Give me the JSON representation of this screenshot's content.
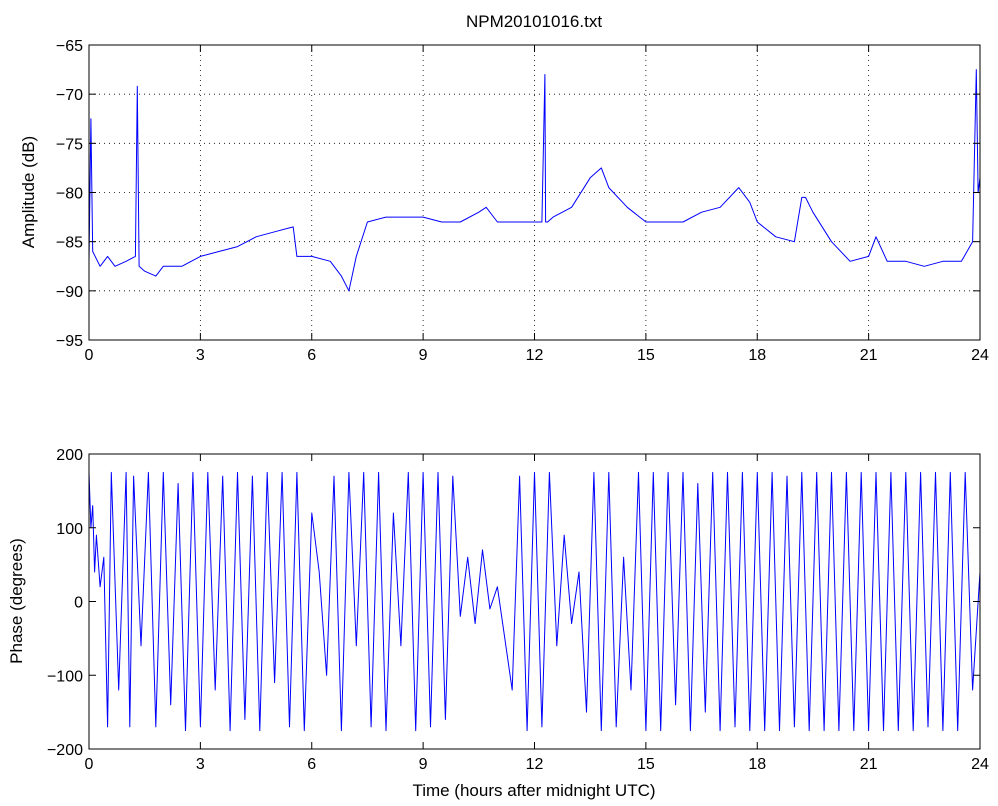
{
  "chart_data": [
    {
      "type": "line",
      "title": "NPM20101016.txt",
      "xlabel": "",
      "ylabel": "Amplitude (dB)",
      "xlim": [
        0,
        24
      ],
      "ylim": [
        -95,
        -65
      ],
      "xticks": [
        0,
        3,
        6,
        9,
        12,
        15,
        18,
        21,
        24
      ],
      "yticks": [
        -95,
        -90,
        -85,
        -80,
        -75,
        -70,
        -65
      ],
      "grid": true,
      "color": "#0000ff",
      "series": [
        {
          "x": [
            0,
            0.05,
            0.1,
            0.3,
            0.5,
            0.7,
            1.0,
            1.25,
            1.3,
            1.35,
            1.5,
            1.8,
            2.0,
            2.5,
            3.0,
            3.5,
            4.0,
            4.5,
            5.0,
            5.5,
            5.6,
            6.0,
            6.5,
            6.8,
            7.0,
            7.2,
            7.5,
            8.0,
            8.5,
            9.0,
            9.5,
            10.0,
            10.5,
            10.7,
            11.0,
            11.5,
            12.0,
            12.2,
            12.28,
            12.3,
            12.35,
            12.5,
            13.0,
            13.5,
            13.8,
            14.0,
            14.5,
            15.0,
            15.5,
            16.0,
            16.5,
            17.0,
            17.5,
            17.8,
            18.0,
            18.5,
            19.0,
            19.2,
            19.3,
            19.5,
            20.0,
            20.5,
            21.0,
            21.2,
            21.5,
            22.0,
            22.5,
            23.0,
            23.5,
            23.8,
            23.9,
            23.95,
            24.0
          ],
          "y": [
            -87,
            -72.5,
            -86,
            -87.5,
            -86.5,
            -87.5,
            -87,
            -86.5,
            -69.2,
            -87.5,
            -88,
            -88.5,
            -87.5,
            -87.5,
            -86.5,
            -86,
            -85.5,
            -84.5,
            -84,
            -83.5,
            -86.5,
            -86.5,
            -87,
            -88.5,
            -90,
            -86.5,
            -83,
            -82.5,
            -82.5,
            -82.5,
            -83,
            -83,
            -82,
            -81.5,
            -83,
            -83,
            -83,
            -83,
            -68,
            -83,
            -83,
            -82.5,
            -81.5,
            -78.5,
            -77.5,
            -79.5,
            -81.5,
            -83,
            -83,
            -83,
            -82,
            -81.5,
            -79.5,
            -81,
            -83,
            -84.5,
            -85,
            -80.5,
            -80.5,
            -82,
            -85,
            -87,
            -86.5,
            -84.5,
            -87,
            -87,
            -87.5,
            -87,
            -87,
            -85,
            -67.5,
            -80,
            -78.5
          ]
        }
      ]
    },
    {
      "type": "line",
      "title": "",
      "xlabel": "Time (hours after midnight UTC)",
      "ylabel": "Phase (degrees)",
      "xlim": [
        0,
        24
      ],
      "ylim": [
        -200,
        200
      ],
      "xticks": [
        0,
        3,
        6,
        9,
        12,
        15,
        18,
        21,
        24
      ],
      "yticks": [
        -200,
        -100,
        0,
        100,
        200
      ],
      "grid": false,
      "color": "#0000ff",
      "series": [
        {
          "x": [
            0,
            0.05,
            0.1,
            0.15,
            0.2,
            0.3,
            0.4,
            0.5,
            0.6,
            0.8,
            1.0,
            1.1,
            1.2,
            1.4,
            1.6,
            1.8,
            2.0,
            2.2,
            2.4,
            2.6,
            2.8,
            3.0,
            3.2,
            3.4,
            3.6,
            3.8,
            4.0,
            4.2,
            4.4,
            4.6,
            4.8,
            5.0,
            5.2,
            5.4,
            5.6,
            5.8,
            6.0,
            6.2,
            6.4,
            6.6,
            6.8,
            7.0,
            7.2,
            7.4,
            7.6,
            7.8,
            8.0,
            8.2,
            8.4,
            8.6,
            8.8,
            9.0,
            9.2,
            9.4,
            9.6,
            9.8,
            10.0,
            10.2,
            10.4,
            10.6,
            10.8,
            11.0,
            11.2,
            11.4,
            11.6,
            11.8,
            12.0,
            12.2,
            12.4,
            12.6,
            12.8,
            13.0,
            13.2,
            13.4,
            13.6,
            13.8,
            14.0,
            14.2,
            14.4,
            14.6,
            14.8,
            15.0,
            15.2,
            15.4,
            15.6,
            15.8,
            16.0,
            16.2,
            16.4,
            16.6,
            16.8,
            17.0,
            17.2,
            17.4,
            17.6,
            17.8,
            18.0,
            18.2,
            18.4,
            18.6,
            18.8,
            19.0,
            19.2,
            19.4,
            19.6,
            19.8,
            20.0,
            20.2,
            20.4,
            20.6,
            20.8,
            21.0,
            21.2,
            21.4,
            21.6,
            21.8,
            22.0,
            22.2,
            22.4,
            22.6,
            22.8,
            23.0,
            23.2,
            23.4,
            23.6,
            23.8,
            24.0
          ],
          "y": [
            175,
            100,
            130,
            40,
            90,
            20,
            60,
            -170,
            175,
            -120,
            175,
            -170,
            170,
            -60,
            175,
            -170,
            175,
            -140,
            160,
            -175,
            175,
            -170,
            175,
            -120,
            170,
            -175,
            175,
            -160,
            170,
            -175,
            175,
            -110,
            175,
            -170,
            175,
            -175,
            120,
            40,
            -100,
            170,
            -175,
            175,
            -60,
            175,
            -170,
            175,
            -175,
            120,
            -60,
            175,
            -175,
            175,
            -170,
            175,
            -160,
            170,
            -20,
            60,
            -30,
            70,
            -10,
            20,
            -50,
            -120,
            170,
            -175,
            175,
            -170,
            175,
            -60,
            90,
            -30,
            40,
            -150,
            175,
            -175,
            175,
            -170,
            60,
            -120,
            175,
            -175,
            175,
            -175,
            175,
            -140,
            175,
            -175,
            160,
            -150,
            175,
            -175,
            175,
            -170,
            175,
            -175,
            175,
            -175,
            175,
            -175,
            170,
            -170,
            175,
            -175,
            175,
            -175,
            175,
            -175,
            175,
            -175,
            175,
            -175,
            175,
            -175,
            175,
            -175,
            175,
            -175,
            175,
            -170,
            175,
            -175,
            175,
            -175,
            175,
            -120,
            40
          ]
        }
      ]
    }
  ]
}
